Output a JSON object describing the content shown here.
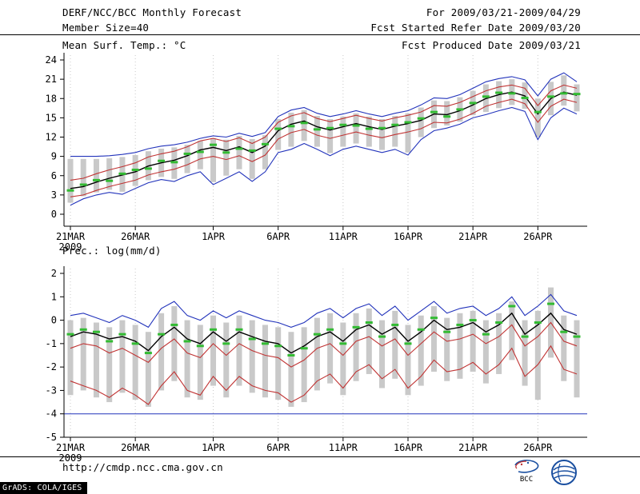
{
  "header": {
    "title": "DERF/NCC/BCC Monthly Forecast",
    "member_size": "Member Size=40",
    "panel1_label": "Mean Surf. Temp.: °C",
    "for_range": "For 2009/03/21-2009/04/29",
    "fcst_started": "Fcst Started Refer Date 2009/03/20",
    "fcst_produced": "Fcst Produced Date 2009/03/21"
  },
  "panel2_label": "Prec.: log(mm/d)",
  "footer": {
    "url": "http://cmdp.ncc.cma.gov.cn",
    "credit": "GrADS: COLA/IGES",
    "bcc_label": "BCC"
  },
  "colors": {
    "envelope_blue": "#2233bb",
    "quartile_red": "#c03333",
    "mean_black": "#000000",
    "obs_green": "#33bb33",
    "bar_gray": "#c9c9c9",
    "grid_gray": "#c8c8c8"
  },
  "chart_data": [
    {
      "type": "line",
      "name": "temperature",
      "title": "Mean Surf. Temp.: °C",
      "n_days": 40,
      "ylim": [
        0,
        24
      ],
      "yticks": [
        0,
        3,
        6,
        9,
        12,
        15,
        18,
        21,
        24
      ],
      "x_tick_labels": [
        "21MAR",
        "26MAR",
        "1APR",
        "6APR",
        "11APR",
        "16APR",
        "21APR",
        "26APR"
      ],
      "x_tick_days": [
        0,
        5,
        11,
        16,
        21,
        26,
        31,
        36
      ],
      "x_sub_label": "2009",
      "series": [
        {
          "name": "ensemble-max",
          "color": "#2233bb",
          "values": [
            9.0,
            9.0,
            9.0,
            9.1,
            9.3,
            9.6,
            10.2,
            10.6,
            10.8,
            11.2,
            11.8,
            12.2,
            12.0,
            12.6,
            12.1,
            12.7,
            15.2,
            16.2,
            16.6,
            15.7,
            15.2,
            15.6,
            16.1,
            15.6,
            15.2,
            15.7,
            16.1,
            17.0,
            18.1,
            18.0,
            18.6,
            19.6,
            20.6,
            21.1,
            21.4,
            20.9,
            18.4,
            21.0,
            22.0,
            20.6
          ]
        },
        {
          "name": "ensemble-min",
          "color": "#2233bb",
          "values": [
            1.4,
            2.4,
            3.0,
            3.4,
            3.1,
            4.0,
            4.9,
            5.4,
            5.1,
            6.0,
            6.6,
            4.6,
            5.6,
            6.6,
            5.1,
            6.6,
            9.6,
            10.1,
            11.0,
            10.1,
            9.1,
            10.1,
            10.6,
            10.1,
            9.6,
            10.1,
            9.2,
            11.6,
            13.0,
            13.4,
            14.0,
            15.0,
            15.5,
            16.1,
            16.6,
            16.0,
            11.6,
            15.0,
            16.5,
            15.6
          ]
        },
        {
          "name": "upper-quartile",
          "color": "#c03333",
          "values": [
            5.3,
            5.6,
            6.3,
            6.9,
            7.4,
            8.0,
            8.9,
            9.4,
            9.8,
            10.5,
            11.4,
            11.8,
            11.3,
            11.9,
            11.0,
            12.0,
            14.3,
            15.3,
            15.8,
            14.9,
            14.4,
            14.9,
            15.4,
            14.9,
            14.5,
            15.0,
            15.4,
            15.9,
            16.9,
            16.8,
            17.4,
            18.3,
            19.2,
            19.8,
            20.1,
            19.6,
            16.9,
            19.2,
            20.1,
            19.6
          ]
        },
        {
          "name": "lower-quartile",
          "color": "#c03333",
          "values": [
            2.7,
            3.0,
            3.7,
            4.3,
            4.8,
            5.3,
            6.1,
            6.6,
            7.0,
            7.7,
            8.6,
            9.0,
            8.5,
            9.1,
            8.2,
            9.2,
            11.7,
            12.7,
            13.2,
            12.3,
            11.8,
            12.3,
            12.8,
            12.3,
            11.9,
            12.4,
            12.8,
            13.3,
            14.3,
            14.2,
            14.8,
            15.7,
            16.8,
            17.4,
            17.9,
            17.2,
            14.3,
            16.8,
            17.9,
            17.4
          ]
        },
        {
          "name": "ensemble-mean",
          "color": "#000000",
          "values": [
            4.0,
            4.3,
            5.0,
            5.6,
            6.1,
            6.6,
            7.5,
            8.0,
            8.4,
            9.1,
            10.0,
            10.4,
            9.9,
            10.5,
            9.6,
            10.6,
            13.0,
            14.0,
            14.5,
            13.6,
            13.1,
            13.6,
            14.1,
            13.6,
            13.2,
            13.7,
            14.1,
            14.6,
            15.6,
            15.5,
            16.1,
            17.0,
            18.0,
            18.6,
            19.0,
            18.4,
            15.6,
            18.0,
            19.0,
            18.5
          ]
        }
      ],
      "dashes": {
        "name": "observation-dash",
        "color": "#33bb33",
        "values": [
          3.7,
          4.6,
          5.3,
          5.2,
          6.3,
          6.9,
          7.1,
          8.3,
          8.1,
          9.4,
          9.7,
          10.8,
          9.6,
          10.2,
          9.9,
          10.9,
          13.3,
          13.7,
          14.2,
          13.2,
          13.4,
          13.9,
          13.8,
          13.3,
          13.4,
          13.9,
          14.3,
          14.9,
          15.9,
          15.2,
          16.3,
          17.3,
          18.3,
          18.9,
          18.8,
          18.1,
          15.9,
          18.3,
          18.8,
          18.7
        ]
      },
      "bars": {
        "color": "#c9c9c9",
        "low": [
          1.8,
          2.8,
          3.4,
          3.8,
          3.5,
          4.4,
          5.3,
          5.8,
          5.5,
          6.4,
          7.0,
          5.0,
          6.0,
          7.0,
          5.5,
          7.0,
          10.0,
          10.5,
          11.4,
          10.5,
          9.5,
          10.5,
          11.0,
          10.5,
          10.0,
          10.5,
          9.6,
          12.0,
          13.4,
          13.8,
          14.4,
          15.4,
          15.9,
          16.5,
          17.0,
          16.4,
          12.0,
          15.4,
          16.9,
          16.0
        ],
        "high": [
          8.6,
          8.6,
          8.6,
          8.7,
          8.9,
          9.2,
          9.8,
          10.2,
          10.4,
          10.8,
          11.4,
          11.8,
          11.6,
          12.2,
          11.7,
          12.3,
          14.8,
          15.8,
          16.2,
          15.3,
          14.8,
          15.2,
          15.7,
          15.2,
          14.8,
          15.3,
          15.7,
          16.6,
          17.7,
          17.6,
          18.2,
          19.2,
          20.2,
          20.7,
          21.0,
          20.5,
          18.0,
          20.6,
          21.6,
          20.2
        ]
      }
    },
    {
      "type": "line",
      "name": "precipitation",
      "title": "Prec.: log(mm/d)",
      "n_days": 40,
      "ylim": [
        -5,
        2
      ],
      "yticks": [
        -5,
        -4,
        -3,
        -2,
        -1,
        0,
        1,
        2
      ],
      "x_tick_labels": [
        "21MAR",
        "26MAR",
        "1APR",
        "6APR",
        "11APR",
        "16APR",
        "21APR",
        "26APR"
      ],
      "x_tick_days": [
        0,
        5,
        11,
        16,
        21,
        26,
        31,
        36
      ],
      "x_sub_label": "2009",
      "series": [
        {
          "name": "ensemble-max",
          "color": "#2233bb",
          "values": [
            0.2,
            0.3,
            0.1,
            -0.1,
            0.2,
            0.0,
            -0.3,
            0.5,
            0.8,
            0.2,
            0.0,
            0.4,
            0.1,
            0.4,
            0.2,
            0.0,
            -0.1,
            -0.3,
            -0.1,
            0.3,
            0.5,
            0.1,
            0.5,
            0.7,
            0.2,
            0.6,
            0.0,
            0.4,
            0.8,
            0.3,
            0.5,
            0.6,
            0.2,
            0.5,
            1.0,
            0.2,
            0.6,
            1.1,
            0.4,
            0.2
          ]
        },
        {
          "name": "floor-line",
          "color": "#2233bb",
          "constant": -4
        },
        {
          "name": "upper-quartile",
          "color": "#c03333",
          "values": [
            -1.2,
            -1.0,
            -1.1,
            -1.4,
            -1.2,
            -1.5,
            -1.8,
            -1.2,
            -0.8,
            -1.4,
            -1.6,
            -1.0,
            -1.5,
            -1.0,
            -1.3,
            -1.5,
            -1.6,
            -2.0,
            -1.7,
            -1.2,
            -1.0,
            -1.5,
            -0.9,
            -0.7,
            -1.1,
            -0.8,
            -1.5,
            -1.0,
            -0.5,
            -0.9,
            -0.8,
            -0.6,
            -1.0,
            -0.7,
            -0.2,
            -1.1,
            -0.7,
            -0.1,
            -0.9,
            -1.1
          ]
        },
        {
          "name": "lower-quartile",
          "color": "#c03333",
          "values": [
            -2.6,
            -2.8,
            -3.0,
            -3.3,
            -2.9,
            -3.2,
            -3.6,
            -2.8,
            -2.2,
            -3.0,
            -3.2,
            -2.4,
            -3.0,
            -2.4,
            -2.8,
            -3.0,
            -3.1,
            -3.5,
            -3.2,
            -2.6,
            -2.3,
            -2.9,
            -2.2,
            -1.9,
            -2.5,
            -2.1,
            -2.9,
            -2.4,
            -1.7,
            -2.2,
            -2.1,
            -1.8,
            -2.3,
            -1.9,
            -1.2,
            -2.4,
            -1.9,
            -1.1,
            -2.1,
            -2.3
          ]
        },
        {
          "name": "ensemble-mean",
          "color": "#000000",
          "values": [
            -0.7,
            -0.5,
            -0.6,
            -0.8,
            -0.7,
            -0.9,
            -1.3,
            -0.7,
            -0.3,
            -0.8,
            -1.0,
            -0.5,
            -0.9,
            -0.5,
            -0.7,
            -0.9,
            -1.0,
            -1.4,
            -1.1,
            -0.7,
            -0.5,
            -0.9,
            -0.4,
            -0.2,
            -0.6,
            -0.3,
            -0.9,
            -0.5,
            0.0,
            -0.4,
            -0.3,
            -0.1,
            -0.5,
            -0.2,
            0.3,
            -0.6,
            -0.2,
            0.3,
            -0.4,
            -0.6
          ]
        }
      ],
      "dashes": {
        "name": "observation-dash",
        "color": "#33bb33",
        "values": [
          -0.6,
          -0.4,
          -0.5,
          -0.9,
          -0.6,
          -1.0,
          -1.4,
          -0.6,
          -0.2,
          -0.9,
          -1.1,
          -0.4,
          -1.0,
          -0.4,
          -0.8,
          -1.0,
          -1.1,
          -1.5,
          -1.2,
          -0.6,
          -0.4,
          -1.0,
          -0.3,
          -0.1,
          -0.7,
          -0.2,
          -1.0,
          -0.4,
          0.1,
          -0.5,
          -0.2,
          0.0,
          -0.6,
          -0.1,
          0.6,
          -0.7,
          -0.1,
          0.7,
          -0.5,
          -0.7
        ]
      },
      "bars": {
        "color": "#c9c9c9",
        "low": [
          -3.2,
          -3.0,
          -3.3,
          -3.5,
          -3.1,
          -3.4,
          -3.7,
          -3.0,
          -2.6,
          -3.3,
          -3.4,
          -2.8,
          -3.3,
          -2.8,
          -3.1,
          -3.3,
          -3.4,
          -3.7,
          -3.5,
          -3.0,
          -2.7,
          -3.2,
          -2.6,
          -2.3,
          -2.9,
          -2.5,
          -3.2,
          -2.8,
          -2.2,
          -2.6,
          -2.5,
          -2.2,
          -2.7,
          -2.3,
          -1.7,
          -2.8,
          -3.4,
          -1.6,
          -2.6,
          -3.3
        ],
        "high": [
          0.0,
          0.1,
          -0.1,
          -0.3,
          0.0,
          -0.2,
          -0.5,
          0.3,
          0.6,
          0.0,
          -0.2,
          0.2,
          -0.1,
          0.2,
          0.0,
          -0.2,
          -0.3,
          -0.5,
          -0.3,
          0.1,
          0.3,
          -0.1,
          0.3,
          0.5,
          0.0,
          0.4,
          -0.2,
          0.2,
          0.6,
          0.1,
          0.3,
          0.4,
          0.0,
          0.3,
          0.8,
          0.0,
          0.4,
          1.4,
          0.2,
          0.0
        ]
      }
    }
  ]
}
